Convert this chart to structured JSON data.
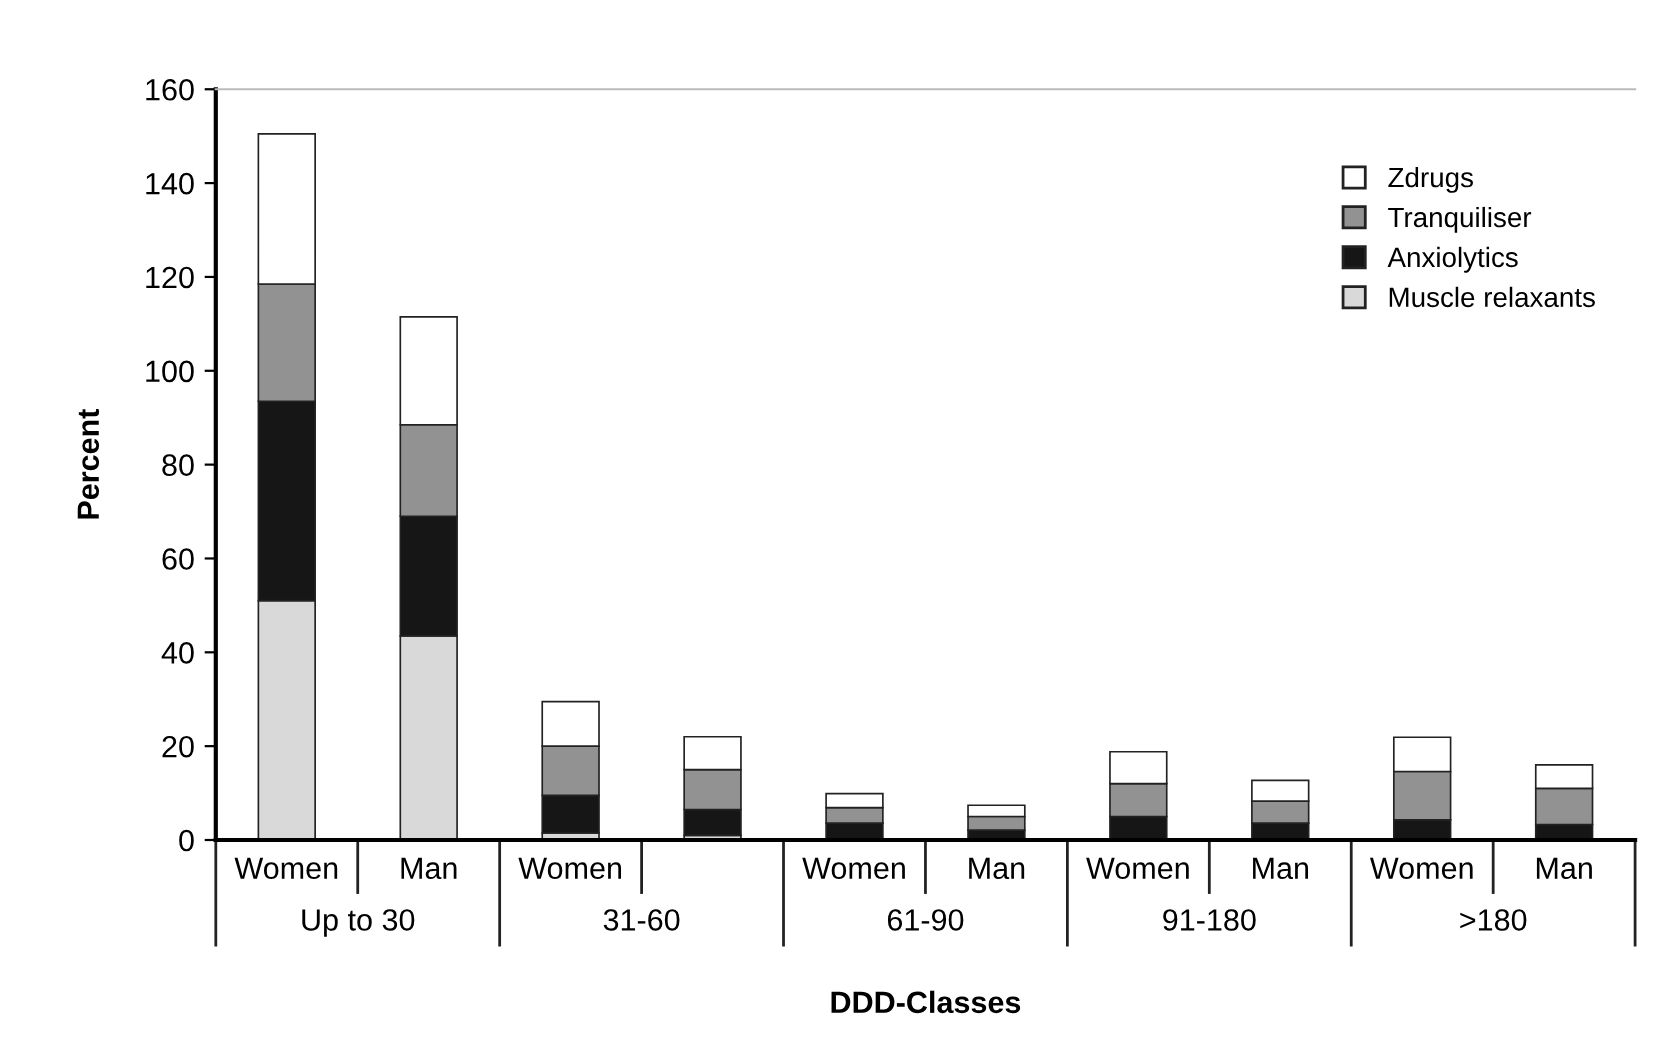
{
  "chart_data": {
    "type": "bar",
    "stacked": true,
    "xlabel": "DDD-Classes",
    "ylabel": "Percent",
    "categories": [
      "Women",
      "Man",
      "Women",
      null,
      "Women",
      "Man",
      "Women",
      "Man",
      "Women",
      "Man"
    ],
    "annotations": [
      "Up to 30",
      "31-60",
      "61-90",
      "91-180",
      ">180"
    ],
    "series": [
      {
        "name": "Muscle relaxants",
        "color": "#d9d9d9",
        "values": [
          51,
          43.5,
          1.5,
          1,
          0,
          0,
          0,
          0,
          0,
          0
        ]
      },
      {
        "name": "Anxiolytics",
        "color": "#161616",
        "values": [
          42.5,
          25.5,
          8,
          5.5,
          3.6,
          2.1,
          5.0,
          3.6,
          4.3,
          3.3
        ]
      },
      {
        "name": "Tranquiliser",
        "color": "#929292",
        "values": [
          25,
          19.5,
          10.5,
          8.5,
          3.3,
          2.9,
          7.0,
          4.7,
          10.3,
          7.7
        ]
      },
      {
        "name": "Zdrugs",
        "color": "#ffffff",
        "values": [
          32,
          23,
          9.5,
          7,
          3.0,
          2.4,
          6.8,
          4.4,
          7.3,
          5.0
        ]
      }
    ],
    "ylim": [
      0,
      160
    ],
    "yticks": [
      0,
      20,
      40,
      60,
      80,
      100,
      120,
      140,
      160
    ],
    "legend": "top right",
    "grid": false
  }
}
